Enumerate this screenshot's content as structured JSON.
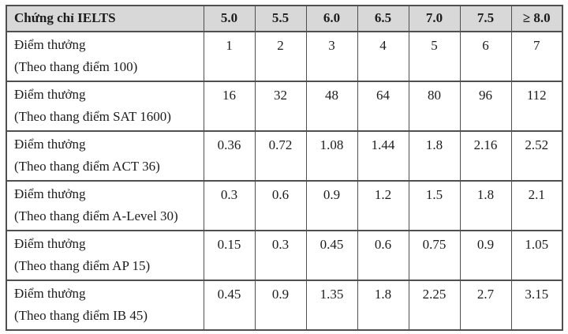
{
  "table": {
    "header": {
      "label": "Chứng chỉ IELTS",
      "columns": [
        "5.0",
        "5.5",
        "6.0",
        "6.5",
        "7.0",
        "7.5",
        "≥ 8.0"
      ]
    },
    "row_label_line1": "Điểm thưởng",
    "rows": [
      {
        "line1": "Điểm thưởng",
        "line2": "(Theo thang điểm 100)",
        "values": [
          "1",
          "2",
          "3",
          "4",
          "5",
          "6",
          "7"
        ]
      },
      {
        "line1": "Điểm thưởng",
        "line2": "(Theo thang điểm SAT 1600)",
        "values": [
          "16",
          "32",
          "48",
          "64",
          "80",
          "96",
          "112"
        ]
      },
      {
        "line1": "Điểm thưởng",
        "line2": "(Theo thang điểm ACT 36)",
        "values": [
          "0.36",
          "0.72",
          "1.08",
          "1.44",
          "1.8",
          "2.16",
          "2.52"
        ]
      },
      {
        "line1": "Điểm thưởng",
        "line2": "(Theo thang điểm A-Level 30)",
        "values": [
          "0.3",
          "0.6",
          "0.9",
          "1.2",
          "1.5",
          "1.8",
          "2.1"
        ]
      },
      {
        "line1": "Điểm thưởng",
        "line2": "(Theo thang điểm AP 15)",
        "values": [
          "0.15",
          "0.3",
          "0.45",
          "0.6",
          "0.75",
          "0.9",
          "1.05"
        ]
      },
      {
        "line1": "Điểm thưởng",
        "line2": "(Theo thang điểm IB 45)",
        "values": [
          "0.45",
          "0.9",
          "1.35",
          "1.8",
          "2.25",
          "2.7",
          "3.15"
        ]
      }
    ],
    "colors": {
      "header_bg": "#d8d8d8",
      "border": "#4f4f4f",
      "text": "#1c1c1c",
      "page_bg": "#ffffff"
    }
  }
}
